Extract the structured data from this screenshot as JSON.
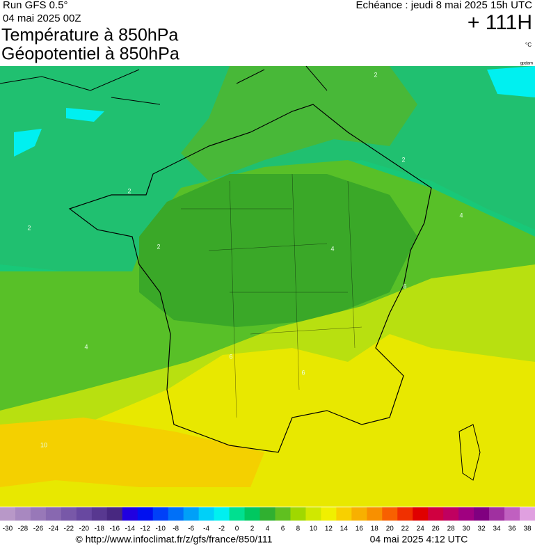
{
  "header": {
    "run": "Run GFS 0.5°",
    "run_date": "04 mai 2025 00Z",
    "echeance": "Echéance : jeudi 8 mai 2025 15h UTC",
    "lead": "+ 111H",
    "title_1": "Température à 850hPa",
    "title_2": "Géopotentiel à 850hPa",
    "unit": "°C",
    "credit": "gpdam"
  },
  "contour_labels": [
    "2",
    "2",
    "2",
    "2",
    "2",
    "4",
    "4",
    "4",
    "6",
    "6",
    "6",
    "10"
  ],
  "scale": {
    "labels": [
      -30,
      -28,
      -26,
      -24,
      -22,
      -20,
      -18,
      -16,
      -14,
      -12,
      -10,
      -8,
      -6,
      -4,
      -2,
      0,
      2,
      4,
      6,
      8,
      10,
      12,
      14,
      16,
      18,
      20,
      22,
      24,
      26,
      28,
      30,
      32,
      34,
      36,
      38
    ],
    "colors": [
      "#b898c8",
      "#a888c0",
      "#9878b8",
      "#8868b0",
      "#7858a8",
      "#6848a0",
      "#583890",
      "#482880",
      "#2000e0",
      "#0010f0",
      "#0040f8",
      "#0070f8",
      "#00a0f8",
      "#00d0f8",
      "#00f0f0",
      "#00e090",
      "#00c860",
      "#30b030",
      "#60c020",
      "#a0d800",
      "#d0e800",
      "#f0f000",
      "#f8d000",
      "#f8b000",
      "#f89000",
      "#f86000",
      "#f03000",
      "#e00000",
      "#d00040",
      "#c00060",
      "#a00080",
      "#800080",
      "#a030a0",
      "#c060c0",
      "#e0a0e0"
    ]
  },
  "footer": {
    "url": "© http://www.infoclimat.fr/z/gfs/france/850/111",
    "time": "04 mai 2025  4:12 UTC"
  }
}
